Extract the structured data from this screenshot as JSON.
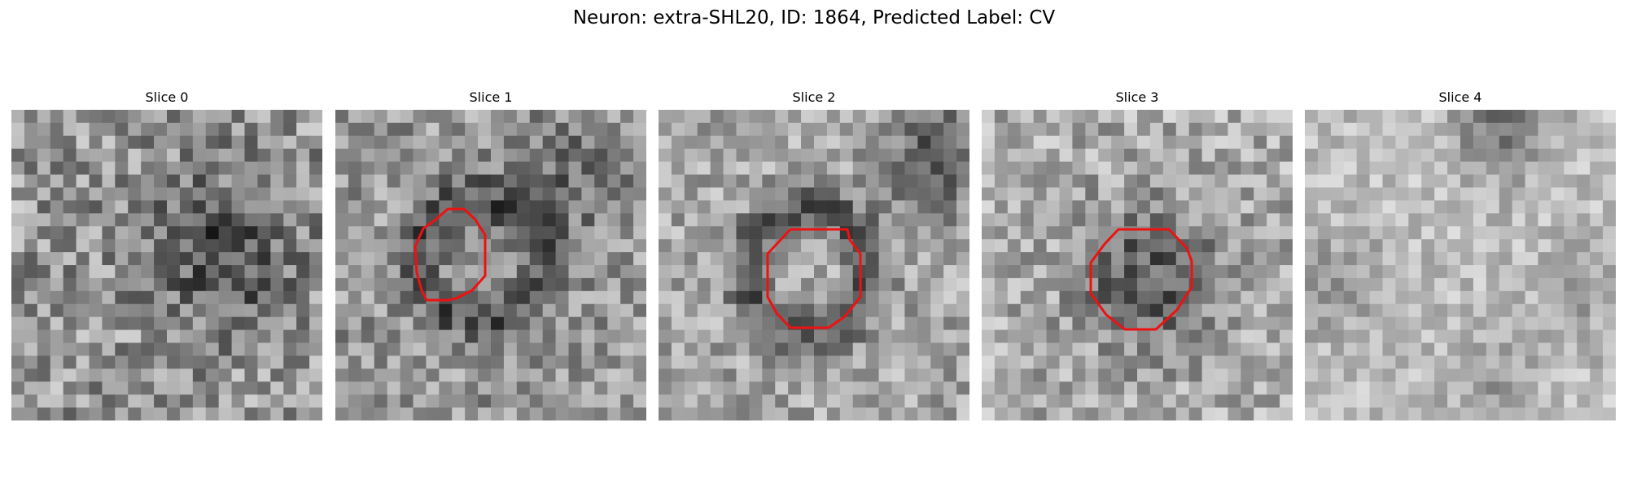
{
  "figure": {
    "title": "Neuron: extra-SHL20, ID: 1864, Predicted Label: CV"
  },
  "colors": {
    "contour": "#ee1111",
    "background": "#ffffff"
  },
  "panels": [
    {
      "title": "Slice 0",
      "has_contour": false
    },
    {
      "title": "Slice 1",
      "has_contour": true
    },
    {
      "title": "Slice 2",
      "has_contour": true
    },
    {
      "title": "Slice 3",
      "has_contour": true
    },
    {
      "title": "Slice 4",
      "has_contour": false
    }
  ]
}
